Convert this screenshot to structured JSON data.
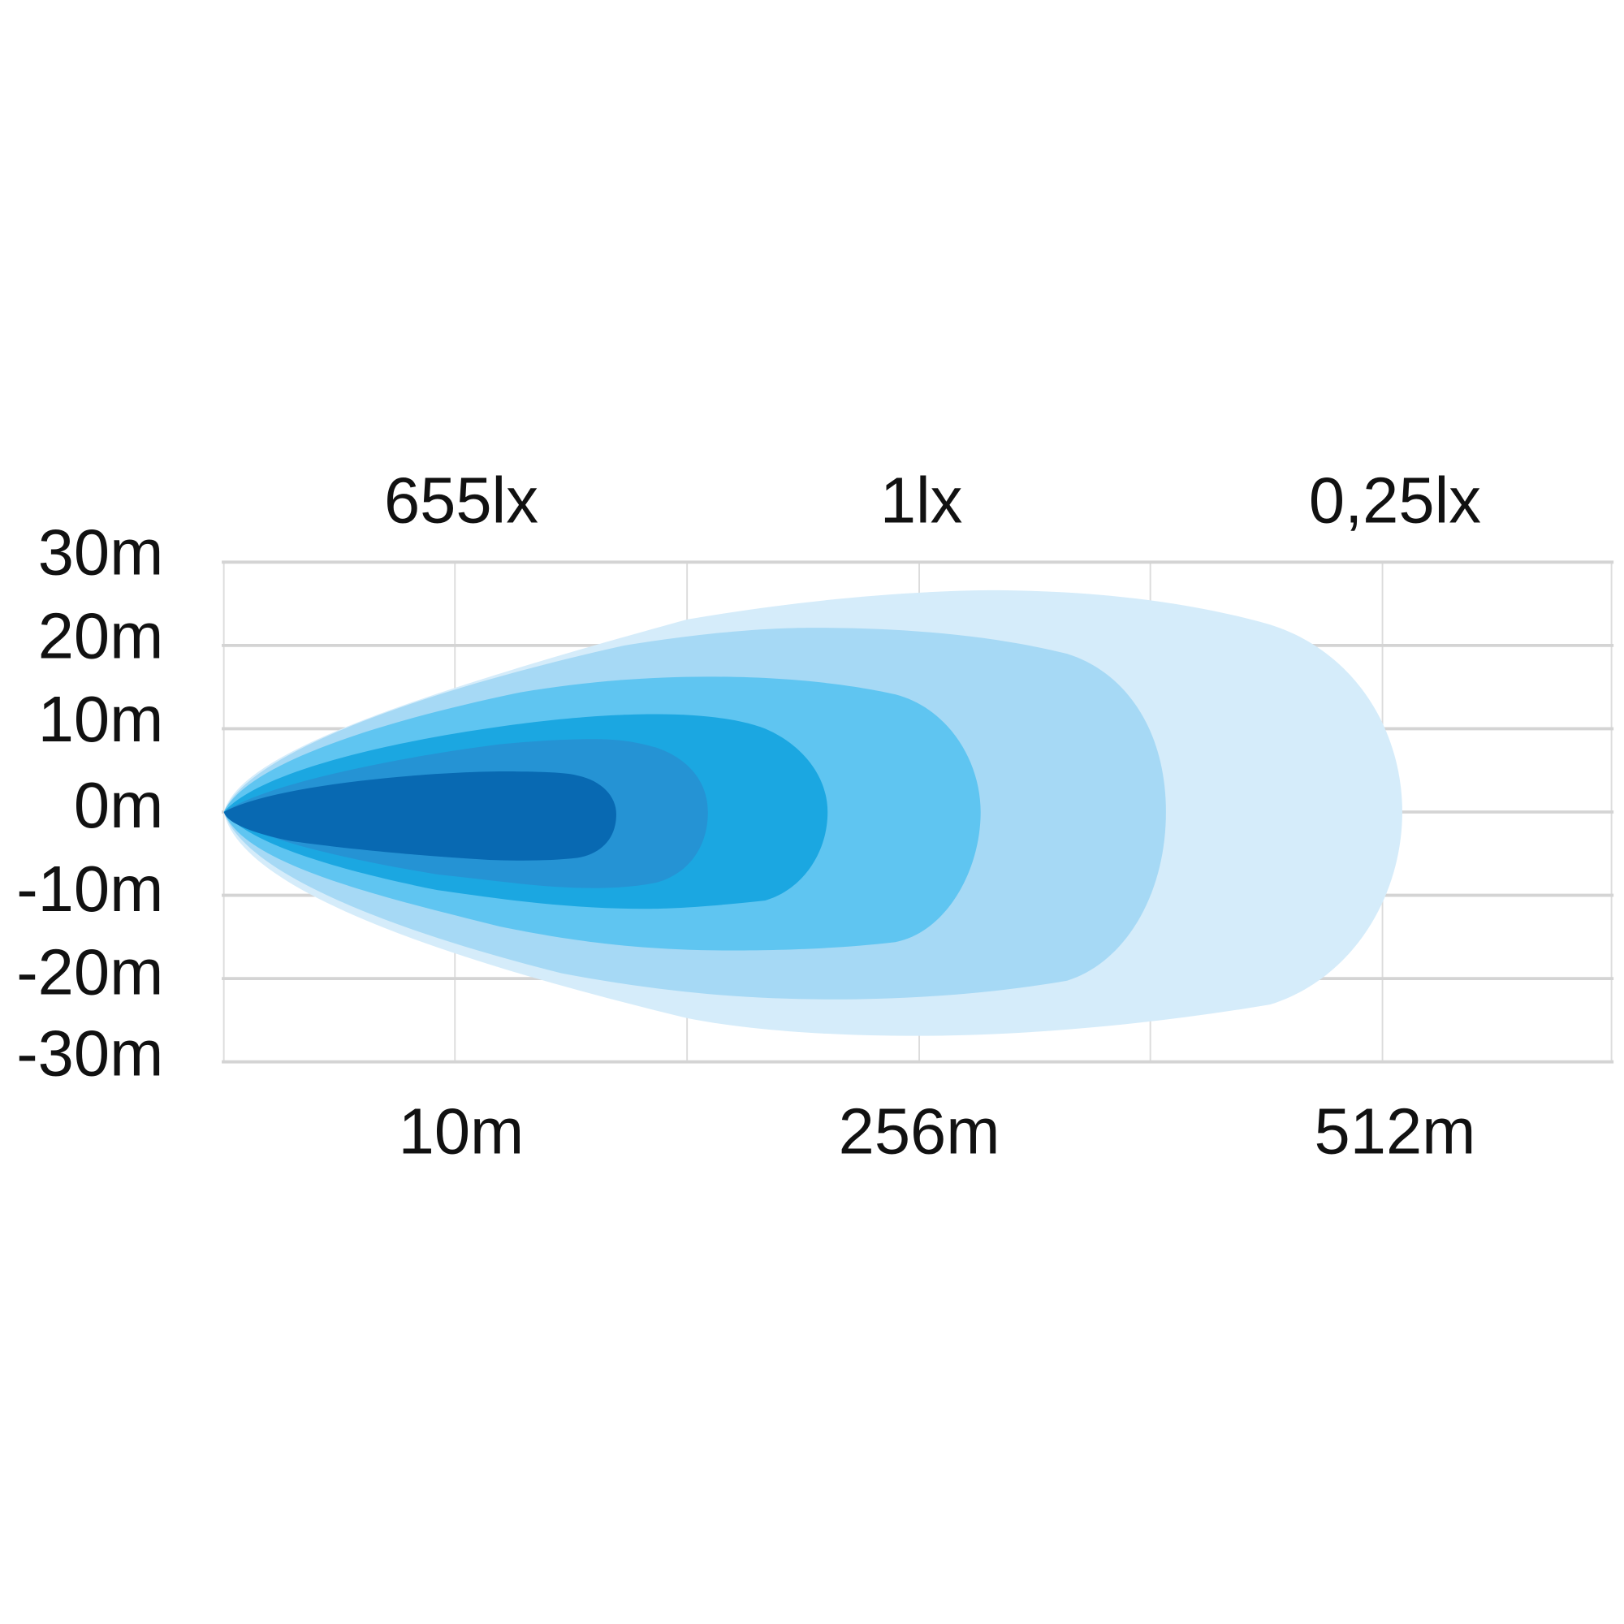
{
  "chart_data": {
    "type": "area",
    "title": "",
    "y_ticks": [
      "30m",
      "20m",
      "10m",
      "0m",
      "-10m",
      "-20m",
      "-30m"
    ],
    "y_range": [
      -30,
      30
    ],
    "x_ticks": [
      "10m",
      "256m",
      "512m"
    ],
    "lux_labels": [
      "655lx",
      "1lx",
      "0,25lx"
    ],
    "grid": true,
    "series": [
      {
        "level": 1,
        "color": "#d5ecfa"
      },
      {
        "level": 2,
        "color": "#a6d9f5"
      },
      {
        "level": 3,
        "color": "#5fc5f1"
      },
      {
        "level": 4,
        "color": "#1ba7e1"
      },
      {
        "level": 5,
        "color": "#2593d4"
      },
      {
        "level": 6,
        "color": "#0869b2"
      }
    ]
  }
}
